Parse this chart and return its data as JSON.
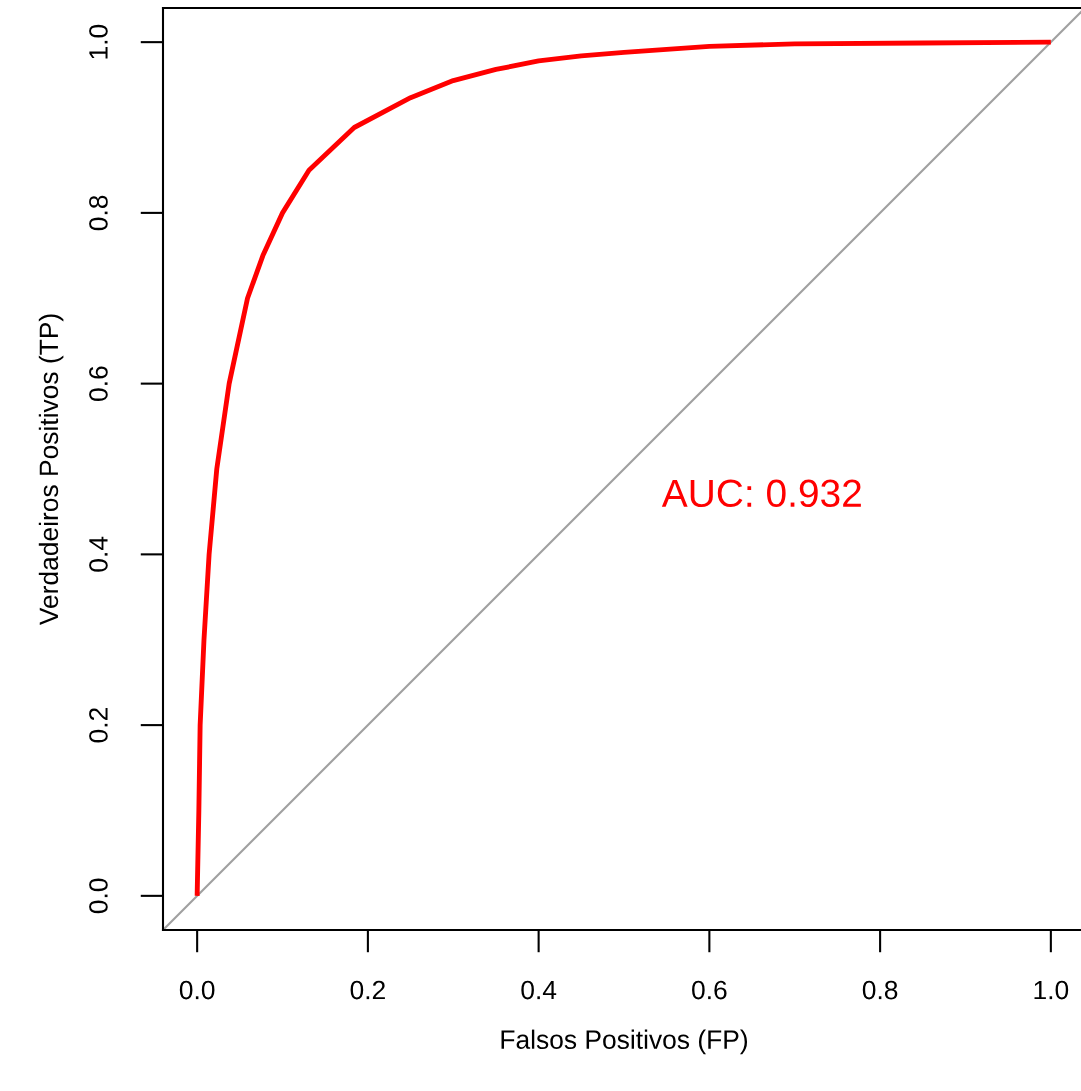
{
  "chart_data": {
    "type": "line",
    "xlabel": "Falsos Positivos (FP)",
    "ylabel": "Verdadeiros Positivos (TP)",
    "xlim": [
      -0.04,
      1.04
    ],
    "ylim": [
      -0.04,
      1.04
    ],
    "xticks": [
      {
        "value": 0,
        "label": "0.0"
      },
      0.2,
      0.4,
      0.6,
      0.8,
      {
        "value": 1,
        "label": "1.0"
      }
    ],
    "yticks": [
      {
        "value": 0,
        "label": "0.0"
      },
      0.2,
      0.4,
      0.6,
      0.8,
      {
        "value": 1,
        "label": "1.0"
      }
    ],
    "grid": false,
    "series": [
      {
        "type": "line",
        "color": "#a0a0a0",
        "x": [
          -0.04,
          1.04
        ],
        "values": [
          -0.04,
          1.04
        ]
      },
      {
        "color": "#ff0000",
        "x": [
          0,
          0.002,
          0.0035,
          0.008,
          0.014,
          0.023,
          0.0375,
          0.059,
          0.077,
          0.1,
          0.131,
          0.184,
          0.25,
          0.3,
          0.35,
          0.4,
          0.45,
          0.5,
          0.6,
          0.7,
          0.85,
          1.0
        ],
        "values": [
          0,
          0.1,
          0.2,
          0.3,
          0.4,
          0.5,
          0.6,
          0.7,
          0.75,
          0.8,
          0.85,
          0.9,
          0.935,
          0.955,
          0.968,
          0.978,
          0.984,
          0.988,
          0.995,
          0.998,
          0.999,
          1.0
        ]
      }
    ],
    "annotations": [
      "AUC: 0.932"
    ]
  }
}
